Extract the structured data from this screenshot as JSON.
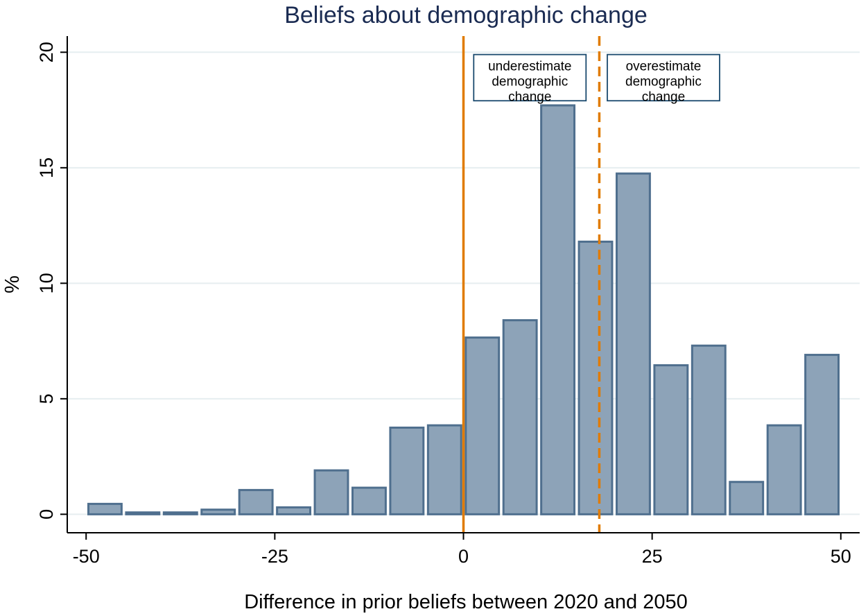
{
  "chart_data": {
    "type": "bar",
    "title": "Beliefs about demographic change",
    "xlabel": "Difference in prior beliefs between 2020 and 2050",
    "ylabel": "%",
    "xlim": [
      -52.5,
      52.5
    ],
    "ylim": [
      -0.8,
      20.7
    ],
    "xticks": [
      -50,
      -25,
      0,
      25,
      50
    ],
    "yticks": [
      0,
      5,
      10,
      15,
      20
    ],
    "bin_width": 5,
    "bins": [
      {
        "center": -47.5,
        "value": 0.45
      },
      {
        "center": -42.5,
        "value": 0.08
      },
      {
        "center": -37.5,
        "value": 0.08
      },
      {
        "center": -32.5,
        "value": 0.2
      },
      {
        "center": -27.5,
        "value": 1.05
      },
      {
        "center": -22.5,
        "value": 0.3
      },
      {
        "center": -17.5,
        "value": 1.9
      },
      {
        "center": -12.5,
        "value": 1.15
      },
      {
        "center": -7.5,
        "value": 3.75
      },
      {
        "center": -2.5,
        "value": 3.85
      },
      {
        "center": 2.5,
        "value": 7.65
      },
      {
        "center": 7.5,
        "value": 8.4
      },
      {
        "center": 12.5,
        "value": 17.7
      },
      {
        "center": 17.5,
        "value": 11.8
      },
      {
        "center": 22.5,
        "value": 14.75
      },
      {
        "center": 27.5,
        "value": 6.45
      },
      {
        "center": 32.5,
        "value": 7.3
      },
      {
        "center": 37.5,
        "value": 1.4
      },
      {
        "center": 42.5,
        "value": 3.85
      },
      {
        "center": 47.5,
        "value": 6.9
      }
    ],
    "reference_lines": [
      {
        "x": 0,
        "style": "solid",
        "color": "#e07b00"
      },
      {
        "x": 18,
        "style": "dashed",
        "color": "#e07b00"
      }
    ],
    "annotations": [
      {
        "lines": [
          "underestimate",
          "demographic",
          "change"
        ],
        "x_center": 8.8,
        "y_top": 19.9,
        "y_bottom": 17.9
      },
      {
        "lines": [
          "overestimate",
          "demographic",
          "change"
        ],
        "x_center": 26.5,
        "y_top": 19.9,
        "y_bottom": 17.9
      }
    ],
    "colors": {
      "bar_fill": "#8da3b8",
      "bar_stroke": "#4f6f8e",
      "grid": "#e6eef0",
      "title": "#1a2b52",
      "annotation_border": "#1a4a6e"
    },
    "grid": true
  }
}
